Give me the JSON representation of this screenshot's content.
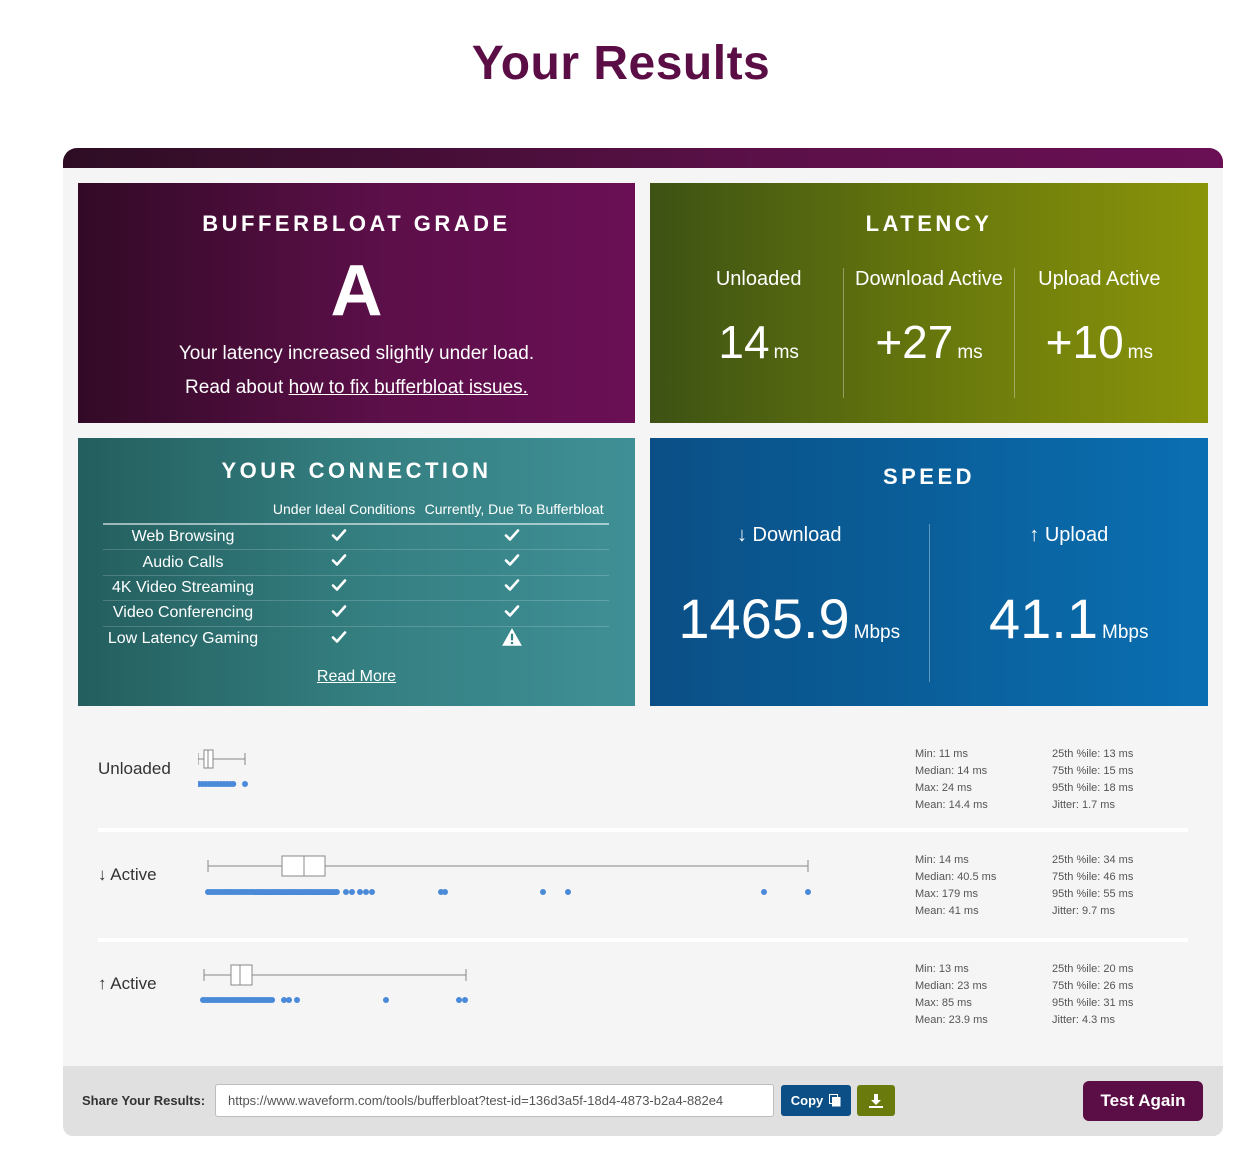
{
  "page": {
    "title": "Your Results"
  },
  "grade": {
    "title": "BUFFERBLOAT GRADE",
    "letter": "A",
    "description": "Your latency increased slightly under load.",
    "read_prefix": "Read about ",
    "read_link": "how to fix bufferbloat issues."
  },
  "latency": {
    "title": "LATENCY",
    "columns": [
      {
        "label": "Unloaded",
        "value": "14",
        "unit": "ms"
      },
      {
        "label": "Download Active",
        "value": "+27",
        "unit": "ms"
      },
      {
        "label": "Upload Active",
        "value": "+10",
        "unit": "ms"
      }
    ]
  },
  "connection": {
    "title": "YOUR CONNECTION",
    "header_ideal": "Under Ideal Conditions",
    "header_current": "Currently, Due To Bufferbloat",
    "rows": [
      {
        "name": "Web Browsing",
        "ideal": "check",
        "current": "check"
      },
      {
        "name": "Audio Calls",
        "ideal": "check",
        "current": "check"
      },
      {
        "name": "4K Video Streaming",
        "ideal": "check",
        "current": "check"
      },
      {
        "name": "Video Conferencing",
        "ideal": "check",
        "current": "check"
      },
      {
        "name": "Low Latency Gaming",
        "ideal": "check",
        "current": "warning"
      }
    ],
    "read_more": "Read More"
  },
  "speed": {
    "title": "SPEED",
    "download": {
      "label": "↓ Download",
      "value": "1465.9",
      "unit": "Mbps"
    },
    "upload": {
      "label": "↑ Upload",
      "value": "41.1",
      "unit": "Mbps"
    }
  },
  "distributions": [
    {
      "label": "Unloaded",
      "stats_left": [
        "Min: 11 ms",
        "Median: 14 ms",
        "Max: 24 ms",
        "Mean: 14.4 ms"
      ],
      "stats_right": [
        "25th %ile: 13 ms",
        "75th %ile: 15 ms",
        "95th %ile: 18 ms",
        "Jitter: 1.7 ms"
      ]
    },
    {
      "label": "↓ Active",
      "stats_left": [
        "Min: 14 ms",
        "Median: 40.5 ms",
        "Max: 179 ms",
        "Mean: 41 ms"
      ],
      "stats_right": [
        "25th %ile: 34 ms",
        "75th %ile: 46 ms",
        "95th %ile: 55 ms",
        "Jitter: 9.7 ms"
      ]
    },
    {
      "label": "↑ Active",
      "stats_left": [
        "Min: 13 ms",
        "Median: 23 ms",
        "Max: 85 ms",
        "Mean: 23.9 ms"
      ],
      "stats_right": [
        "25th %ile: 20 ms",
        "75th %ile: 26 ms",
        "95th %ile: 31 ms",
        "Jitter: 4.3 ms"
      ]
    }
  ],
  "share": {
    "label": "Share Your Results:",
    "url": "https://www.waveform.com/tools/bufferbloat?test-id=136d3a5f-18d4-4873-b2a4-882e4",
    "copy_label": "Copy",
    "test_again_label": "Test Again"
  },
  "colors": {
    "brand_purple": "#5b0d45",
    "latency_green": "#6a7a0c",
    "connection_teal": "#347e80",
    "speed_blue": "#0a5f9a",
    "dot_blue": "#4a8ad8"
  }
}
